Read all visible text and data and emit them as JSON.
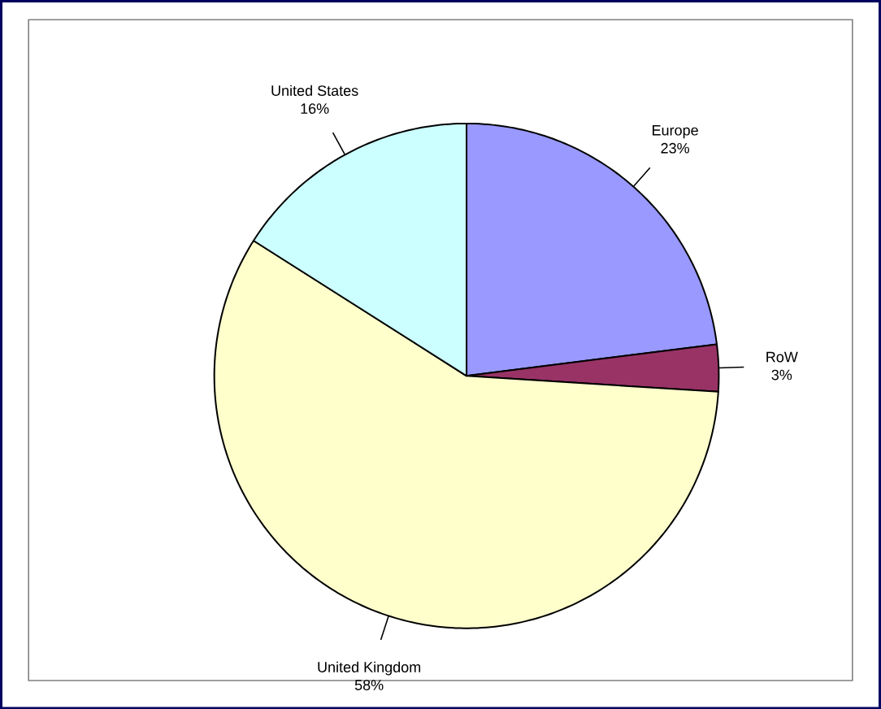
{
  "chart_data": {
    "type": "pie",
    "categories": [
      "Europe",
      "RoW",
      "United Kingdom",
      "United States"
    ],
    "values": [
      23,
      3,
      58,
      16
    ],
    "colors": [
      "#9999ff",
      "#993366",
      "#ffffcc",
      "#ccffff"
    ],
    "value_labels": [
      "23%",
      "3%",
      "58%",
      "16%"
    ]
  }
}
